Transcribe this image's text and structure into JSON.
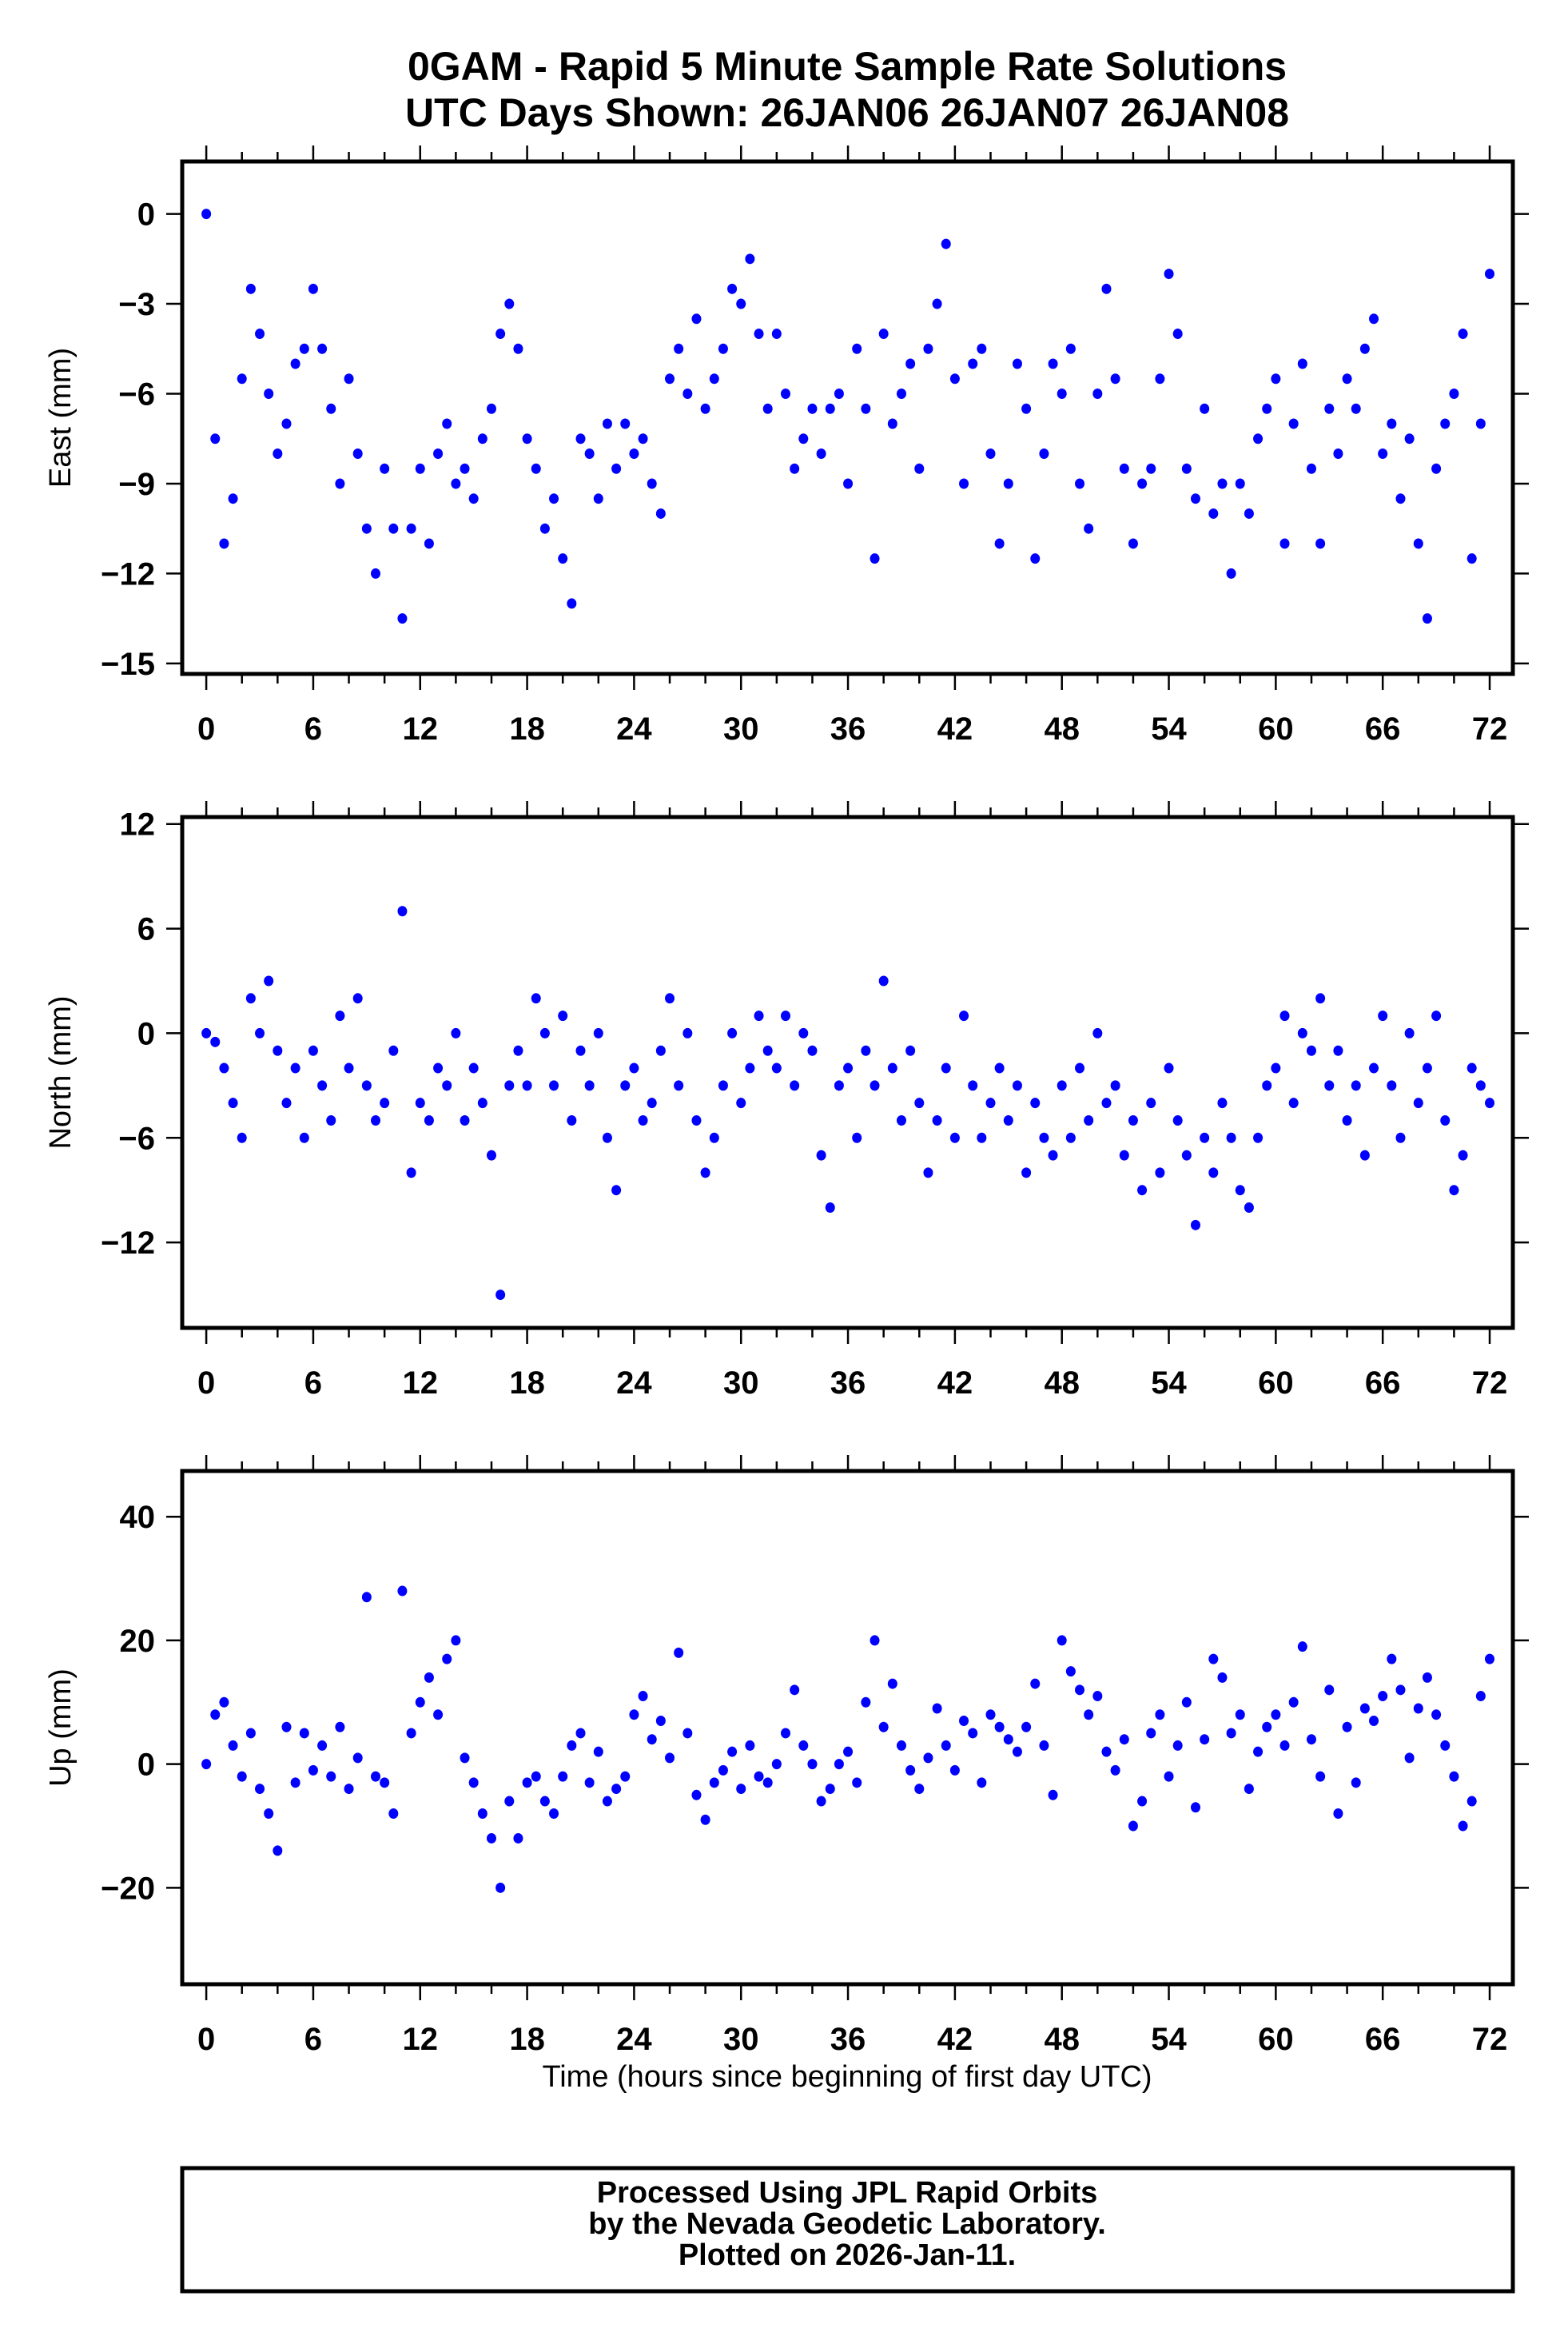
{
  "title": {
    "line1": "0GAM - Rapid 5 Minute Sample Rate Solutions",
    "line2": "UTC Days Shown:  26JAN06 26JAN07 26JAN08"
  },
  "footer": {
    "line1": "Processed Using JPL Rapid Orbits",
    "line2": "by the Nevada Geodetic Laboratory.",
    "line3": "Plotted on 2026-Jan-11."
  },
  "colors": {
    "points": "#0000ff",
    "axes": "#000000"
  },
  "chart_data": [
    {
      "type": "scatter",
      "title": "",
      "xlabel": "",
      "ylabel": "East (mm)",
      "xlim": [
        -1.35,
        73.3
      ],
      "ylim": [
        -15.35,
        1.75
      ],
      "xticks": [
        0,
        6,
        12,
        18,
        24,
        30,
        36,
        42,
        48,
        54,
        60,
        66,
        72
      ],
      "yticks": [
        0,
        -3,
        -6,
        -9,
        -12,
        -15
      ],
      "grid": false,
      "x_start": 0,
      "x_step": 0.5,
      "y": [
        0,
        -7.5,
        -11,
        -9.5,
        -5.5,
        -2.5,
        -4,
        -6,
        -8,
        -7,
        -5,
        -4.5,
        -2.5,
        -4.5,
        -6.5,
        -9,
        -5.5,
        -8,
        -10.5,
        -12,
        -8.5,
        -10.5,
        -13.5,
        -10.5,
        -8.5,
        -11,
        -8,
        -7,
        -9,
        -8.5,
        -9.5,
        -7.5,
        -6.5,
        -4,
        -3,
        -4.5,
        -7.5,
        -8.5,
        -10.5,
        -9.5,
        -11.5,
        -13,
        -7.5,
        -8,
        -9.5,
        -7,
        -8.5,
        -7,
        -8,
        -7.5,
        -9,
        -10,
        -5.5,
        -4.5,
        -6,
        -3.5,
        -6.5,
        -5.5,
        -4.5,
        -2.5,
        -3,
        -1.5,
        -4,
        -6.5,
        -4,
        -6,
        -8.5,
        -7.5,
        -6.5,
        -8,
        -6.5,
        -6,
        -9,
        -4.5,
        -6.5,
        -11.5,
        -4,
        -7,
        -6,
        -5,
        -8.5,
        -4.5,
        -3,
        -1,
        -5.5,
        -9,
        -5,
        -4.5,
        -8,
        -11,
        -9,
        -5,
        -6.5,
        -11.5,
        -8,
        -5,
        -6,
        -4.5,
        -9,
        -10.5,
        -6,
        -2.5,
        -5.5,
        -8.5,
        -11,
        -9,
        -8.5,
        -5.5,
        -2,
        -4,
        -8.5,
        -9.5,
        -6.5,
        -10,
        -9,
        -12,
        -9,
        -10,
        -7.5,
        -6.5,
        -5.5,
        -11,
        -7,
        -5,
        -8.5,
        -11,
        -6.5,
        -8,
        -5.5,
        -6.5,
        -4.5,
        -3.5,
        -8,
        -7,
        -9.5,
        -7.5,
        -11,
        -13.5,
        -8.5,
        -7,
        -6,
        -4,
        -11.5,
        -7,
        -2
      ]
    },
    {
      "type": "scatter",
      "title": "",
      "xlabel": "",
      "ylabel": "North (mm)",
      "xlim": [
        -1.35,
        73.3
      ],
      "ylim": [
        -16.9,
        12.4
      ],
      "xticks": [
        0,
        6,
        12,
        18,
        24,
        30,
        36,
        42,
        48,
        54,
        60,
        66,
        72
      ],
      "yticks": [
        12,
        6,
        0,
        -6,
        -12
      ],
      "grid": false,
      "x_start": 0,
      "x_step": 0.5,
      "y": [
        0,
        -0.5,
        -2,
        -4,
        -6,
        2,
        0,
        3,
        -1,
        -4,
        -2,
        -6,
        -1,
        -3,
        -5,
        1,
        -2,
        2,
        -3,
        -5,
        -4,
        -1,
        7,
        -8,
        -4,
        -5,
        -2,
        -3,
        0,
        -5,
        -2,
        -4,
        -7,
        -15,
        -3,
        -1,
        -3,
        2,
        0,
        -3,
        1,
        -5,
        -1,
        -3,
        0,
        -6,
        -9,
        -3,
        -2,
        -5,
        -4,
        -1,
        2,
        -3,
        0,
        -5,
        -8,
        -6,
        -3,
        0,
        -4,
        -2,
        1,
        -1,
        -2,
        1,
        -3,
        0,
        -1,
        -7,
        -10,
        -3,
        -2,
        -6,
        -1,
        -3,
        3,
        -2,
        -5,
        -1,
        -4,
        -8,
        -5,
        -2,
        -6,
        1,
        -3,
        -6,
        -4,
        -2,
        -5,
        -3,
        -8,
        -4,
        -6,
        -7,
        -3,
        -6,
        -2,
        -5,
        0,
        -4,
        -3,
        -7,
        -5,
        -9,
        -4,
        -8,
        -2,
        -5,
        -7,
        -11,
        -6,
        -8,
        -4,
        -6,
        -9,
        -10,
        -6,
        -3,
        -2,
        1,
        -4,
        0,
        -1,
        2,
        -3,
        -1,
        -5,
        -3,
        -7,
        -2,
        1,
        -3,
        -6,
        0,
        -4,
        -2,
        1,
        -5,
        -9,
        -7,
        -2,
        -3,
        -4
      ]
    },
    {
      "type": "scatter",
      "title": "",
      "xlabel": "Time (hours since beginning of first day UTC)",
      "ylabel": "Up (mm)",
      "xlim": [
        -1.35,
        73.3
      ],
      "ylim": [
        -35.6,
        47.4
      ],
      "xticks": [
        0,
        6,
        12,
        18,
        24,
        30,
        36,
        42,
        48,
        54,
        60,
        66,
        72
      ],
      "yticks": [
        40,
        20,
        0,
        -20
      ],
      "grid": false,
      "x_start": 0,
      "x_step": 0.5,
      "y": [
        0,
        8,
        10,
        3,
        -2,
        5,
        -4,
        -8,
        -14,
        6,
        -3,
        5,
        -1,
        3,
        -2,
        6,
        -4,
        1,
        27,
        -2,
        -3,
        -8,
        28,
        5,
        10,
        14,
        8,
        17,
        20,
        1,
        -3,
        -8,
        -12,
        -20,
        -6,
        -12,
        -3,
        -2,
        -6,
        -8,
        -2,
        3,
        5,
        -3,
        2,
        -6,
        -4,
        -2,
        8,
        11,
        4,
        7,
        1,
        18,
        5,
        -5,
        -9,
        -3,
        -1,
        2,
        -4,
        3,
        -2,
        -3,
        0,
        5,
        12,
        3,
        0,
        -6,
        -4,
        0,
        2,
        -3,
        10,
        20,
        6,
        13,
        3,
        -1,
        -4,
        1,
        9,
        3,
        -1,
        7,
        5,
        -3,
        8,
        6,
        4,
        2,
        6,
        13,
        3,
        -5,
        20,
        15,
        12,
        8,
        11,
        2,
        -1,
        4,
        -10,
        -6,
        5,
        8,
        -2,
        3,
        10,
        -7,
        4,
        17,
        14,
        5,
        8,
        -4,
        2,
        6,
        8,
        3,
        10,
        19,
        4,
        -2,
        12,
        -8,
        6,
        -3,
        9,
        7,
        11,
        17,
        12,
        1,
        9,
        14,
        8,
        3,
        -2,
        -10,
        -6,
        11,
        17
      ]
    }
  ]
}
